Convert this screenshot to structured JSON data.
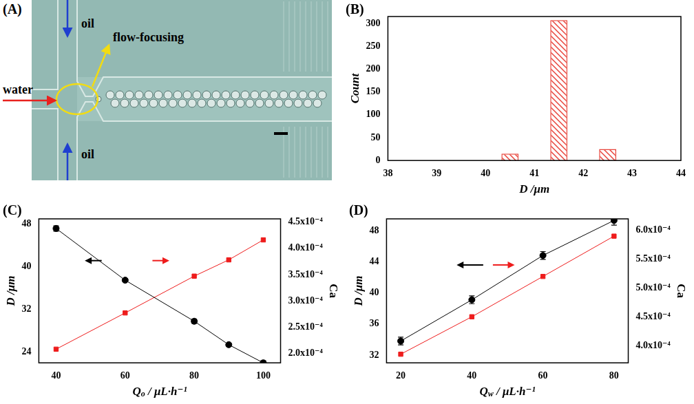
{
  "image_panel": {
    "panel": "(A)",
    "oil": "oil",
    "water": "water",
    "annotation": "flow-focusing"
  },
  "chart_data": [
    {
      "panel": "(B)",
      "type": "bar",
      "x_label": "D /μm",
      "y_label": "Count",
      "x": [
        40.5,
        41.5,
        42.5
      ],
      "values": [
        15,
        307,
        25
      ],
      "color": "#e8453c",
      "xlim": [
        38,
        44
      ],
      "xticks": [
        38,
        39,
        40,
        41,
        42,
        43,
        44
      ],
      "ylim": [
        0,
        315
      ],
      "yticks": [
        0,
        50,
        100,
        150,
        200,
        250,
        300
      ],
      "grid": false
    },
    {
      "panel": "(C)",
      "type": "line",
      "x_label": "Qo / μL·h⁻¹",
      "y_label": "D /μm",
      "y2_label": "Ca",
      "x": [
        40,
        60,
        80,
        90,
        100
      ],
      "xlim": [
        35,
        105
      ],
      "xticks": [
        40,
        60,
        80,
        100
      ],
      "ylim": [
        22,
        49
      ],
      "yticks": [
        24,
        32,
        40,
        48
      ],
      "y2lim": [
        0.000182,
        0.000456
      ],
      "y2ticks": [
        {
          "value": 0.0002,
          "label": "2.0x10⁻⁴"
        },
        {
          "value": 0.00025,
          "label": "2.5x10⁻⁴"
        },
        {
          "value": 0.0003,
          "label": "3.0x10⁻⁴"
        },
        {
          "value": 0.00035,
          "label": "3.5x10⁻⁴"
        },
        {
          "value": 0.0004,
          "label": "4.0x10⁻⁴"
        },
        {
          "value": 0.00045,
          "label": "4.5x10⁻⁴"
        }
      ],
      "grid": false,
      "series": [
        {
          "color": "#000000",
          "marker": "circle",
          "axis": "y",
          "values": [
            47.2,
            37.5,
            29.8,
            25.4,
            22.0
          ],
          "errors": [
            0.5,
            0.3,
            0.4,
            0.3,
            0.4
          ]
        },
        {
          "color": "#ee1c1c",
          "marker": "square",
          "axis": "y2",
          "values": [
            0.000208,
            0.000277,
            0.000347,
            0.000378,
            0.000416
          ]
        }
      ]
    },
    {
      "panel": "(D)",
      "type": "line",
      "x_label": "Qw / μL·h⁻¹",
      "y_label": "D /μm",
      "y2_label": "Ca",
      "x": [
        20,
        40,
        60,
        80
      ],
      "xlim": [
        16,
        84
      ],
      "xticks": [
        20,
        40,
        60,
        80
      ],
      "ylim": [
        31,
        49.5
      ],
      "yticks": [
        32,
        36,
        40,
        44,
        48
      ],
      "y2lim": [
        0.00037,
        0.00062
      ],
      "y2ticks": [
        {
          "value": 0.0004,
          "label": "4.0x10⁻⁴"
        },
        {
          "value": 0.00045,
          "label": "4.5x10⁻⁴"
        },
        {
          "value": 0.0005,
          "label": "5.0x10⁻⁴"
        },
        {
          "value": 0.00055,
          "label": "5.5x10⁻⁴"
        },
        {
          "value": 0.0006,
          "label": "6.0x10⁻⁴"
        }
      ],
      "grid": false,
      "series": [
        {
          "color": "#000000",
          "marker": "circle",
          "axis": "y",
          "values": [
            33.8,
            39.1,
            44.8,
            49.3
          ],
          "errors": [
            0.5,
            0.5,
            0.5,
            0.6
          ]
        },
        {
          "color": "#ee1c1c",
          "marker": "square",
          "axis": "y2",
          "values": [
            0.000385,
            0.00045,
            0.00052,
            0.00059
          ]
        }
      ]
    }
  ]
}
